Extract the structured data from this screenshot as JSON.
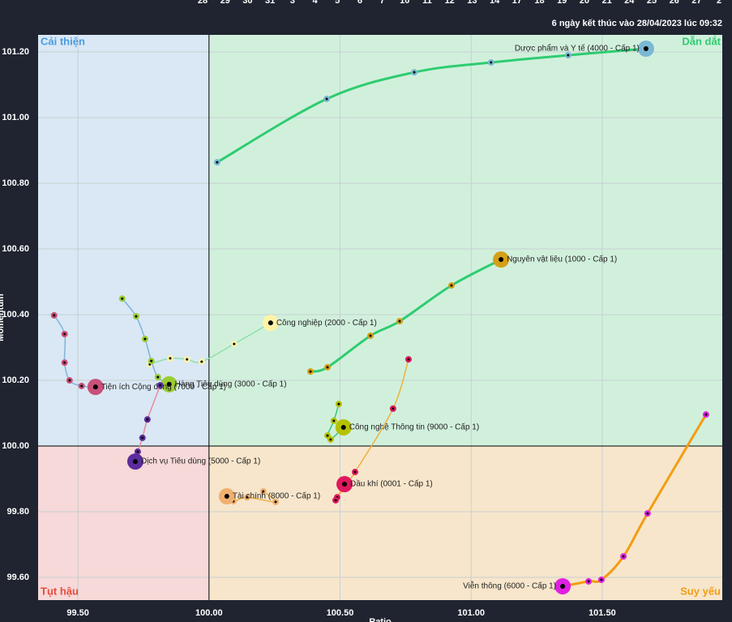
{
  "chart_data": {
    "type": "scatter",
    "subtitle": "6 ngày kết thúc vào 28/04/2023 lúc 09:32",
    "x_label": "Ratio",
    "y_label": "Momentum",
    "top_axis_labels": [
      "28",
      "29",
      "30",
      "31",
      "3",
      "4",
      "5",
      "6",
      "7",
      "10",
      "11",
      "12",
      "13",
      "14",
      "17",
      "18",
      "19",
      "20",
      "21",
      "24",
      "25",
      "26",
      "27",
      "2"
    ],
    "quadrants": [
      {
        "name": "Cải thiện",
        "color": "#4a9be0",
        "fill": "#d9e8f4"
      },
      {
        "name": "Dẫn dắt",
        "color": "#2ecc71",
        "fill": "#d1f0dc"
      },
      {
        "name": "Tụt hậu",
        "color": "#e74c3c",
        "fill": "#f6d9d8"
      },
      {
        "name": "Suy yếu",
        "color": "#f39c12",
        "fill": "#f7e6cb"
      }
    ],
    "center": [
      100,
      100
    ],
    "xlim": [
      99.348,
      101.958
    ],
    "ylim": [
      99.531,
      101.252
    ],
    "xticks": [
      {
        "value": 99.5,
        "label": "99.50"
      },
      {
        "value": 100,
        "label": "100.00"
      },
      {
        "value": 100.5,
        "label": "100.50"
      },
      {
        "value": 101,
        "label": "101.00"
      },
      {
        "value": 101.5,
        "label": "101.50"
      }
    ],
    "yticks": [
      {
        "value": 99.6,
        "label": "99.60"
      },
      {
        "value": 99.8,
        "label": "99.80"
      },
      {
        "value": 100,
        "label": "100.00"
      },
      {
        "value": 100.2,
        "label": "100.20"
      },
      {
        "value": 100.4,
        "label": "100.40"
      },
      {
        "value": 100.6,
        "label": "100.60"
      },
      {
        "value": 100.8,
        "label": "100.80"
      },
      {
        "value": 101,
        "label": "101.00"
      },
      {
        "value": 101.2,
        "label": "101.20"
      }
    ],
    "grid": true,
    "series": [
      {
        "name": "Dược phẩm và Y tế (4000 - Cấp 1)",
        "color": "#7ab8d4",
        "line_color": "#2ecc71",
        "x": [
          100.031,
          100.449,
          100.783,
          101.076,
          101.37,
          101.667
        ],
        "values": [
          100.864,
          101.057,
          101.138,
          101.168,
          101.19,
          101.21
        ]
      },
      {
        "name": "Nguyên vật liệu (1000 - Cấp 1)",
        "color": "#d4a017",
        "line_color": "#2ecc71",
        "x": [
          100.387,
          100.452,
          100.616,
          100.727,
          100.925,
          101.114
        ],
        "values": [
          100.227,
          100.24,
          100.336,
          100.38,
          100.489,
          100.568
        ]
      },
      {
        "name": "Công nghiệp (2000 - Cấp 1)",
        "color": "#fff3a8",
        "line_color": "#8de0a8",
        "x": [
          99.774,
          99.852,
          99.916,
          99.972,
          100.096,
          100.235
        ],
        "values": [
          100.249,
          100.267,
          100.264,
          100.257,
          100.311,
          100.375
        ]
      },
      {
        "name": "Hàng Tiêu dùng (3000 - Cấp 1)",
        "color": "#9acd32",
        "line_color": "#7fb3dd",
        "x": [
          99.669,
          99.722,
          99.756,
          99.78,
          99.805,
          99.848
        ],
        "values": [
          100.449,
          100.395,
          100.326,
          100.259,
          100.21,
          100.188
        ]
      },
      {
        "name": "Tiện ích Cộng đồng (7000 - Cấp 1)",
        "color": "#c9507a",
        "line_color": "#7fb3dd",
        "x": [
          99.409,
          99.449,
          99.449,
          99.468,
          99.514,
          99.567
        ],
        "values": [
          100.398,
          100.341,
          100.254,
          100.2,
          100.183,
          100.18
        ]
      },
      {
        "name": "Dịch vụ Tiêu dùng (5000 - Cấp 1)",
        "color": "#5b2c9e",
        "line_color": "#e88a9a",
        "x": [
          99.814,
          99.765,
          99.746,
          99.728,
          99.719
        ],
        "values": [
          100.185,
          100.081,
          100.025,
          99.983,
          99.953
        ]
      },
      {
        "name": "Công nghệ Thông tin (9000 - Cấp 1)",
        "color": "#b5c200",
        "line_color": "#2ecc71",
        "x": [
          100.495,
          100.476,
          100.452,
          100.464,
          100.513
        ],
        "values": [
          100.128,
          100.077,
          100.032,
          100.02,
          100.057
        ]
      },
      {
        "name": "Dầu khí (0001 - Cấp 1)",
        "color": "#e0185e",
        "line_color": "#f0b040",
        "x": [
          100.761,
          100.702,
          100.557,
          100.489,
          100.483,
          100.517
        ],
        "values": [
          100.264,
          100.114,
          99.921,
          99.844,
          99.835,
          99.884
        ]
      },
      {
        "name": "Tài chính (8000 - Cấp 1)",
        "color": "#f0b070",
        "line_color": "#f0b040",
        "x": [
          100.207,
          100.254,
          100.145,
          100.093,
          100.068
        ],
        "values": [
          99.862,
          99.83,
          99.844,
          99.832,
          99.847
        ]
      },
      {
        "name": "Viễn thông (6000 - Cấp 1)",
        "color": "#e020e0",
        "line_color": "#f39c12",
        "x": [
          101.896,
          101.673,
          101.581,
          101.497,
          101.448,
          101.349
        ],
        "values": [
          100.096,
          99.795,
          99.664,
          99.593,
          99.588,
          99.573
        ]
      }
    ]
  }
}
